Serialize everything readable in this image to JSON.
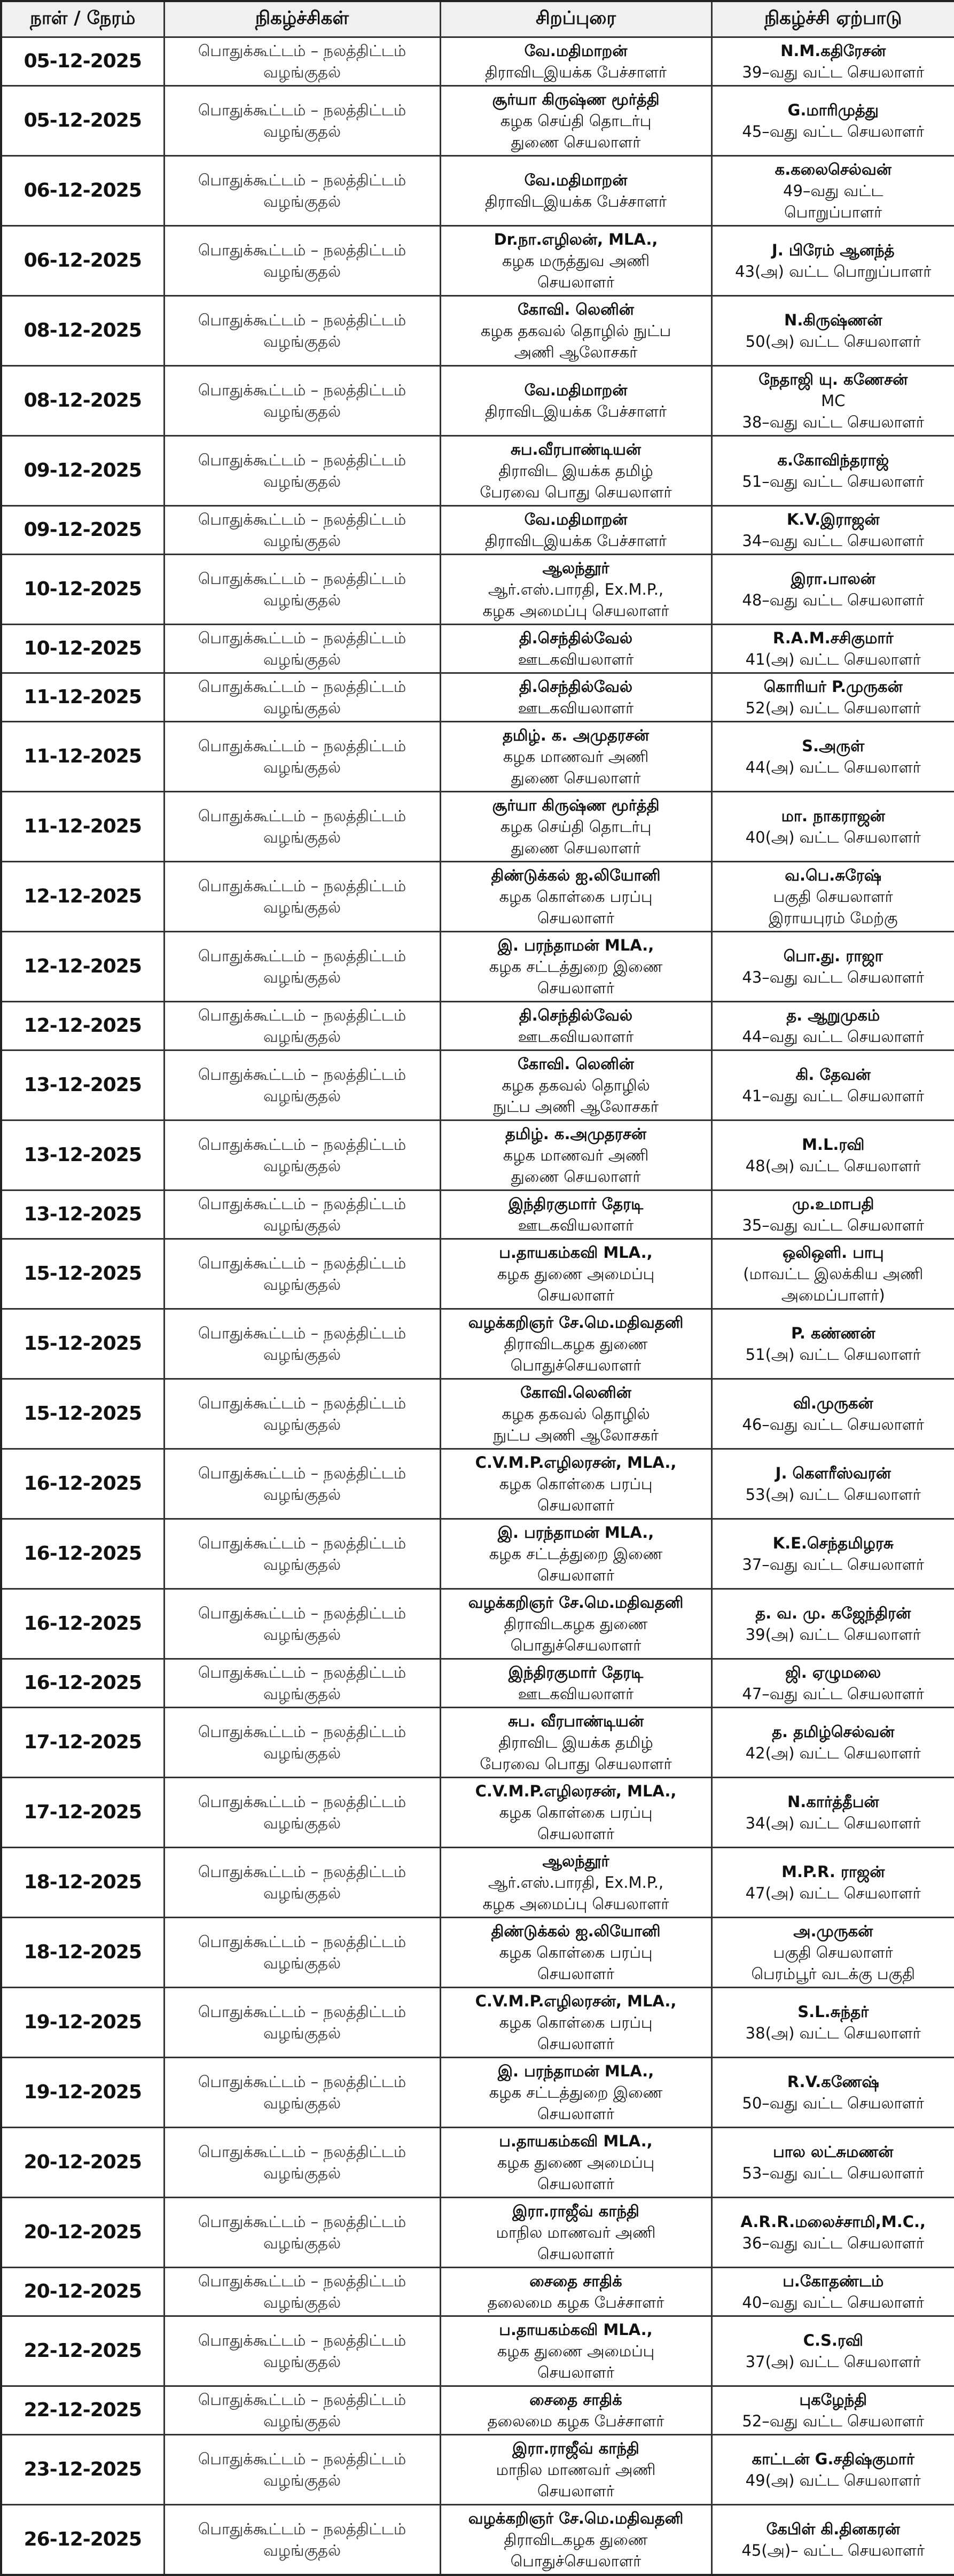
{
  "header": {
    "date": "நாள் / நேரம்",
    "program": "நிகழ்ச்சிகள்",
    "speaker": "சிறப்புரை",
    "organizer": "நிகழ்ச்சி ஏற்பாடு"
  },
  "rows": [
    {
      "date": "05-12-2025",
      "program": [
        "பொதுக்கூட்டம் – நலத்திட்டம்",
        "வழங்குதல்"
      ],
      "speaker": [
        "வே.மதிமாறன்",
        "திராவிடஇயக்க பேச்சாளர்"
      ],
      "organizer": [
        "N.M.கதிரேசன்",
        "39–வது வட்ட செயலாளர்"
      ]
    },
    {
      "date": "05-12-2025",
      "program": [
        "பொதுக்கூட்டம் – நலத்திட்டம்",
        "வழங்குதல்"
      ],
      "speaker": [
        "சூர்யா கிருஷ்ண மூர்த்தி",
        "கழக செய்தி தொடர்பு",
        "துணை செயலாளர்"
      ],
      "organizer": [
        "G.மாரிமுத்து",
        "45–வது வட்ட செயலாளர்"
      ]
    },
    {
      "date": "06-12-2025",
      "program": [
        "பொதுக்கூட்டம் – நலத்திட்டம்",
        "வழங்குதல்"
      ],
      "speaker": [
        "வே.மதிமாறன்",
        "திராவிடஇயக்க பேச்சாளர்"
      ],
      "organizer": [
        "க.கலைசெல்வன்",
        "49–வது வட்ட",
        "பொறுப்பாளர்"
      ]
    },
    {
      "date": "06-12-2025",
      "program": [
        "பொதுக்கூட்டம் – நலத்திட்டம்",
        "வழங்குதல்"
      ],
      "speaker": [
        "Dr.நா.எழிலன், MLA.,",
        "கழக மருத்துவ அணி",
        "செயலாளர்"
      ],
      "organizer": [
        "J. பிரேம் ஆனந்த்",
        "43(அ) வட்ட பொறுப்பாளர்"
      ]
    },
    {
      "date": "08-12-2025",
      "program": [
        "பொதுக்கூட்டம் – நலத்திட்டம்",
        "வழங்குதல்"
      ],
      "speaker": [
        "கோவி. லெனின்",
        "கழக தகவல் தொழில் நுட்ப",
        "அணி ஆலோசகர்"
      ],
      "organizer": [
        "N.கிருஷ்ணன்",
        "50(அ) வட்ட செயலாளர்"
      ]
    },
    {
      "date": "08-12-2025",
      "program": [
        "பொதுக்கூட்டம் – நலத்திட்டம்",
        "வழங்குதல்"
      ],
      "speaker": [
        "வே.மதிமாறன்",
        "திராவிடஇயக்க பேச்சாளர்"
      ],
      "organizer": [
        "நேதாஜி யு. கணேசன்",
        "MC",
        "38–வது வட்ட செயலாளர்"
      ]
    },
    {
      "date": "09-12-2025",
      "program": [
        "பொதுக்கூட்டம் – நலத்திட்டம்",
        "வழங்குதல்"
      ],
      "speaker": [
        "சுப.வீரபாண்டியன்",
        "திராவிட இயக்க தமிழ்",
        "பேரவை பொது செயலாளர்"
      ],
      "organizer": [
        "க.கோவிந்தராஜ்",
        "51–வது வட்ட செயலாளர்"
      ]
    },
    {
      "date": "09-12-2025",
      "program": [
        "பொதுக்கூட்டம் – நலத்திட்டம்",
        "வழங்குதல்"
      ],
      "speaker": [
        "வே.மதிமாறன்",
        "திராவிடஇயக்க பேச்சாளர்"
      ],
      "organizer": [
        "K.V.இராஜன்",
        "34–வது வட்ட செயலாளர்"
      ]
    },
    {
      "date": "10-12-2025",
      "program": [
        "பொதுக்கூட்டம் – நலத்திட்டம்",
        "வழங்குதல்"
      ],
      "speaker": [
        "ஆலந்தூர்",
        "ஆர்.எஸ்.பாரதி, Ex.M.P.,",
        "கழக அமைப்பு செயலாளர்"
      ],
      "organizer": [
        "இரா.பாலன்",
        "48–வது வட்ட செயலாளர்"
      ]
    },
    {
      "date": "10-12-2025",
      "program": [
        "பொதுக்கூட்டம் – நலத்திட்டம்",
        "வழங்குதல்"
      ],
      "speaker": [
        "தி.செந்தில்வேல்",
        "ஊடகவியலாளர்"
      ],
      "organizer": [
        "R.A.M.சசிகுமார்",
        "41(அ) வட்ட செயலாளர்"
      ]
    },
    {
      "date": "11-12-2025",
      "program": [
        "பொதுக்கூட்டம் – நலத்திட்டம்",
        "வழங்குதல்"
      ],
      "speaker": [
        "தி.செந்தில்வேல்",
        "ஊடகவியலாளர்"
      ],
      "organizer": [
        "கொரியர் P.முருகன்",
        "52(அ) வட்ட செயலாளர்"
      ]
    },
    {
      "date": "11-12-2025",
      "program": [
        "பொதுக்கூட்டம் – நலத்திட்டம்",
        "வழங்குதல்"
      ],
      "speaker": [
        "தமிழ். க. அமுதரசன்",
        "கழக மாணவர் அணி",
        "துணை செயலாளர்"
      ],
      "organizer": [
        "S.அருள்",
        "44(அ) வட்ட செயலாளர்"
      ]
    },
    {
      "date": "11-12-2025",
      "program": [
        "பொதுக்கூட்டம் – நலத்திட்டம்",
        "வழங்குதல்"
      ],
      "speaker": [
        "சூர்யா கிருஷ்ண மூர்த்தி",
        "கழக செய்தி தொடர்பு",
        "துணை செயலாளர்"
      ],
      "organizer": [
        "மா. நாகராஜன்",
        "40(அ) வட்ட செயலாளர்"
      ]
    },
    {
      "date": "12-12-2025",
      "program": [
        "பொதுக்கூட்டம் – நலத்திட்டம்",
        "வழங்குதல்"
      ],
      "speaker": [
        "திண்டுக்கல் ஐ.லியோனி",
        "கழக கொள்கை பரப்பு",
        "செயலாளர்"
      ],
      "organizer": [
        "வ.பெ.சுரேஷ்",
        "பகுதி செயலாளர்",
        "இராயபுரம் மேற்கு"
      ]
    },
    {
      "date": "12-12-2025",
      "program": [
        "பொதுக்கூட்டம் – நலத்திட்டம்",
        "வழங்குதல்"
      ],
      "speaker": [
        "இ. பரந்தாமன் MLA.,",
        "கழக சட்டத்துறை இணை",
        "செயலாளர்"
      ],
      "organizer": [
        "பொ.து. ராஜா",
        "43–வது வட்ட செயலாளர்"
      ]
    },
    {
      "date": "12-12-2025",
      "program": [
        "பொதுக்கூட்டம் – நலத்திட்டம்",
        "வழங்குதல்"
      ],
      "speaker": [
        "தி.செந்தில்வேல்",
        "ஊடகவியலாளர்"
      ],
      "organizer": [
        "த. ஆறுமுகம்",
        "44–வது வட்ட செயலாளர்"
      ]
    },
    {
      "date": "13-12-2025",
      "program": [
        "பொதுக்கூட்டம் – நலத்திட்டம்",
        "வழங்குதல்"
      ],
      "speaker": [
        "கோவி. லெனின்",
        "கழக தகவல் தொழில்",
        "நுட்ப அணி ஆலோசகர்"
      ],
      "organizer": [
        "கி. தேவன்",
        "41–வது வட்ட செயலாளர்"
      ]
    },
    {
      "date": "13-12-2025",
      "program": [
        "பொதுக்கூட்டம் – நலத்திட்டம்",
        "வழங்குதல்"
      ],
      "speaker": [
        "தமிழ். க.அமுதரசன்",
        "கழக மாணவர் அணி",
        "துணை செயலாளர்"
      ],
      "organizer": [
        "M.L.ரவி",
        "48(அ) வட்ட செயலாளர்"
      ]
    },
    {
      "date": "13-12-2025",
      "program": [
        "பொதுக்கூட்டம் – நலத்திட்டம்",
        "வழங்குதல்"
      ],
      "speaker": [
        "இந்திரகுமார் தேரடி",
        "ஊடகவியலாளர்"
      ],
      "organizer": [
        "மு.உமாபதி",
        "35–வது வட்ட செயலாளர்"
      ]
    },
    {
      "date": "15-12-2025",
      "program": [
        "பொதுக்கூட்டம் – நலத்திட்டம்",
        "வழங்குதல்"
      ],
      "speaker": [
        "ப.தாயகம்கவி MLA.,",
        "கழக துணை அமைப்பு",
        "செயலாளர்"
      ],
      "organizer": [
        "ஒலிஒளி. பாபு",
        "(மாவட்ட இலக்கிய அணி",
        "அமைப்பாளர்)"
      ]
    },
    {
      "date": "15-12-2025",
      "program": [
        "பொதுக்கூட்டம் – நலத்திட்டம்",
        "வழங்குதல்"
      ],
      "speaker": [
        "வழக்கறிஞர் சே.மெ.மதிவதனி",
        "திராவிடகழக துணை",
        "பொதுச்செயலாளர்"
      ],
      "organizer": [
        "P. கண்ணன்",
        "51(அ) வட்ட செயலாளர்"
      ]
    },
    {
      "date": "15-12-2025",
      "program": [
        "பொதுக்கூட்டம் – நலத்திட்டம்",
        "வழங்குதல்"
      ],
      "speaker": [
        "கோவி.லெனின்",
        "கழக தகவல் தொழில்",
        "நுட்ப அணி ஆலோசகர்"
      ],
      "organizer": [
        "வி.முருகன்",
        "46–வது வட்ட செயலாளர்"
      ]
    },
    {
      "date": "16-12-2025",
      "program": [
        "பொதுக்கூட்டம் – நலத்திட்டம்",
        "வழங்குதல்"
      ],
      "speaker": [
        "C.V.M.P.எழிலரசன், MLA.,",
        "கழக கொள்கை பரப்பு",
        "செயலாளர்"
      ],
      "organizer": [
        "J. கௌரீஸ்வரன்",
        "53(அ) வட்ட செயலாளர்"
      ]
    },
    {
      "date": "16-12-2025",
      "program": [
        "பொதுக்கூட்டம் – நலத்திட்டம்",
        "வழங்குதல்"
      ],
      "speaker": [
        "இ. பரந்தாமன் MLA.,",
        "கழக சட்டத்துறை இணை",
        "செயலாளர்"
      ],
      "organizer": [
        "K.E.செந்தமிழரசு",
        "37–வது வட்ட செயலாளர்"
      ]
    },
    {
      "date": "16-12-2025",
      "program": [
        "பொதுக்கூட்டம் – நலத்திட்டம்",
        "வழங்குதல்"
      ],
      "speaker": [
        "வழக்கறிஞர் சே.மெ.மதிவதனி",
        "திராவிடகழக துணை",
        "பொதுச்செயலாளர்"
      ],
      "organizer": [
        "த. வ. மு. கஜேந்திரன்",
        "39(அ) வட்ட செயலாளர்"
      ]
    },
    {
      "date": "16-12-2025",
      "program": [
        "பொதுக்கூட்டம் – நலத்திட்டம்",
        "வழங்குதல்"
      ],
      "speaker": [
        "இந்திரகுமார் தேரடி",
        "ஊடகவியலாளர்"
      ],
      "organizer": [
        "ஜி. ஏழுமலை",
        "47–வது வட்ட செயலாளர்"
      ]
    },
    {
      "date": "17-12-2025",
      "program": [
        "பொதுக்கூட்டம் – நலத்திட்டம்",
        "வழங்குதல்"
      ],
      "speaker": [
        "சுப. வீரபாண்டியன்",
        "திராவிட இயக்க தமிழ்",
        "பேரவை பொது செயலாளர்"
      ],
      "organizer": [
        "த. தமிழ்செல்வன்",
        "42(அ) வட்ட செயலாளர்"
      ]
    },
    {
      "date": "17-12-2025",
      "program": [
        "பொதுக்கூட்டம் – நலத்திட்டம்",
        "வழங்குதல்"
      ],
      "speaker": [
        "C.V.M.P.எழிலரசன், MLA.,",
        "கழக கொள்கை பரப்பு",
        "செயலாளர்"
      ],
      "organizer": [
        "N.கார்த்தீபன்",
        "34(அ) வட்ட செயலாளர்"
      ]
    },
    {
      "date": "18-12-2025",
      "program": [
        "பொதுக்கூட்டம் – நலத்திட்டம்",
        "வழங்குதல்"
      ],
      "speaker": [
        "ஆலந்தூர்",
        "ஆர்.எஸ்.பாரதி, Ex.M.P.,",
        "கழக அமைப்பு செயலாளர்"
      ],
      "organizer": [
        "M.P.R. ராஜன்",
        "47(அ) வட்ட செயலாளர்"
      ]
    },
    {
      "date": "18-12-2025",
      "program": [
        "பொதுக்கூட்டம் – நலத்திட்டம்",
        "வழங்குதல்"
      ],
      "speaker": [
        "திண்டுக்கல் ஐ.லியோனி",
        "கழக கொள்கை பரப்பு",
        "செயலாளர்"
      ],
      "organizer": [
        "அ.முருகன்",
        "பகுதி செயலாளர்",
        "பெரம்பூர் வடக்கு பகுதி"
      ]
    },
    {
      "date": "19-12-2025",
      "program": [
        "பொதுக்கூட்டம் – நலத்திட்டம்",
        "வழங்குதல்"
      ],
      "speaker": [
        "C.V.M.P.எழிலரசன், MLA.,",
        "கழக கொள்கை பரப்பு",
        "செயலாளர்"
      ],
      "organizer": [
        "S.L.சுந்தர்",
        "38(அ) வட்ட செயலாளர்"
      ]
    },
    {
      "date": "19-12-2025",
      "program": [
        "பொதுக்கூட்டம் – நலத்திட்டம்",
        "வழங்குதல்"
      ],
      "speaker": [
        "இ. பரந்தாமன் MLA.,",
        "கழக சட்டத்துறை இணை",
        "செயலாளர்"
      ],
      "organizer": [
        "R.V.கணேஷ்",
        "50–வது வட்ட செயலாளர்"
      ]
    },
    {
      "date": "20-12-2025",
      "program": [
        "பொதுக்கூட்டம் – நலத்திட்டம்",
        "வழங்குதல்"
      ],
      "speaker": [
        "ப.தாயகம்கவி MLA.,",
        "கழக துணை அமைப்பு",
        "செயலாளர்"
      ],
      "organizer": [
        "பால லட்சுமணன்",
        "53–வது வட்ட செயலாளர்"
      ]
    },
    {
      "date": "20-12-2025",
      "program": [
        "பொதுக்கூட்டம் – நலத்திட்டம்",
        "வழங்குதல்"
      ],
      "speaker": [
        "இரா.ராஜீவ் காந்தி",
        "மாநில மாணவர் அணி",
        "செயலாளர்"
      ],
      "organizer": [
        "A.R.R.மலைச்சாமி,M.C.,",
        "36–வது வட்ட செயலாளர்"
      ]
    },
    {
      "date": "20-12-2025",
      "program": [
        "பொதுக்கூட்டம் – நலத்திட்டம்",
        "வழங்குதல்"
      ],
      "speaker": [
        "சைதை சாதிக்",
        "தலைமை கழக பேச்சாளர்"
      ],
      "organizer": [
        "ப.கோதண்டம்",
        "40–வது வட்ட செயலாளர்"
      ]
    },
    {
      "date": "22-12-2025",
      "program": [
        "பொதுக்கூட்டம் – நலத்திட்டம்",
        "வழங்குதல்"
      ],
      "speaker": [
        "ப.தாயகம்கவி MLA.,",
        "கழக துணை அமைப்பு",
        "செயலாளர்"
      ],
      "organizer": [
        "C.S.ரவி",
        "37(அ) வட்ட செயலாளர்"
      ]
    },
    {
      "date": "22-12-2025",
      "program": [
        "பொதுக்கூட்டம் – நலத்திட்டம்",
        "வழங்குதல்"
      ],
      "speaker": [
        "சைதை சாதிக்",
        "தலைமை கழக பேச்சாளர்"
      ],
      "organizer": [
        "புகழேந்தி",
        "52–வது வட்ட செயலாளர்"
      ]
    },
    {
      "date": "23-12-2025",
      "program": [
        "பொதுக்கூட்டம் – நலத்திட்டம்",
        "வழங்குதல்"
      ],
      "speaker": [
        "இரா.ராஜீவ் காந்தி",
        "மாநில மாணவர் அணி",
        "செயலாளர்"
      ],
      "organizer": [
        "காட்டன் G.சதிஷ்குமார்",
        "49(அ) வட்ட செயலாளர்"
      ]
    },
    {
      "date": "26-12-2025",
      "program": [
        "பொதுக்கூட்டம் – நலத்திட்டம்",
        "வழங்குதல்"
      ],
      "speaker": [
        "வழக்கறிஞர் சே.மெ.மதிவதனி",
        "திராவிடகழக துணை",
        "பொதுச்செயலாளர்"
      ],
      "organizer": [
        "கேபிள் கி.தினகரன்",
        "45(அ)– வட்ட செயலாளர்"
      ]
    }
  ]
}
